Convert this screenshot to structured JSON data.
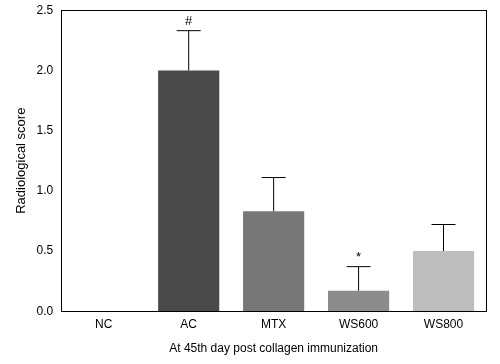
{
  "chart_data": {
    "type": "bar",
    "categories": [
      "NC",
      "AC",
      "MTX",
      "WS600",
      "WS800"
    ],
    "values": [
      0,
      2.0,
      0.83,
      0.17,
      0.5
    ],
    "errors": [
      0,
      0.33,
      0.28,
      0.2,
      0.22
    ],
    "colors": [
      "#333333",
      "#4a4a4a",
      "#777777",
      "#8c8c8c",
      "#bdbdbd"
    ],
    "x_label": "At 45th day post collagen immunization",
    "y_label": "Radiological score",
    "ylim": [
      0,
      2.5
    ],
    "yticks": [
      {
        "value": 0,
        "label": "0.0"
      },
      0.5,
      {
        "value": 1,
        "label": "1.0"
      },
      1.5,
      {
        "value": 2,
        "label": "2.0"
      },
      2.5
    ],
    "annotations": [
      {
        "text": "#",
        "category": "AC"
      },
      {
        "text": "*",
        "category": "WS600"
      }
    ],
    "grid": false,
    "legend": false
  }
}
